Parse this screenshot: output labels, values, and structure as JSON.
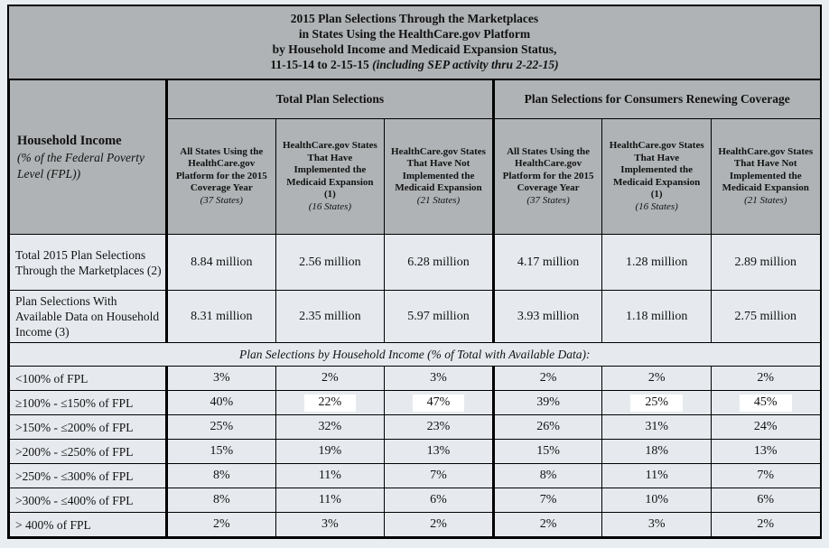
{
  "title": {
    "line1": "2015 Plan Selections Through the Marketplaces",
    "line2": "in States Using the HealthCare.gov Platform",
    "line3": "by Household Income and Medicaid Expansion Status,",
    "line4_dates": "11-15-14 to 2-15-15",
    "line4_note": "(including SEP activity thru 2-22-15)"
  },
  "row_header": {
    "title": "Household Income",
    "subtitle": "(% of the Federal Poverty Level (FPL))"
  },
  "groups": [
    {
      "label": "Total Plan Selections"
    },
    {
      "label": "Plan Selections for Consumers Renewing Coverage"
    }
  ],
  "columns": [
    {
      "text": "All States Using the HealthCare.gov Platform for the 2015 Coverage Year",
      "states": "(37 States)"
    },
    {
      "text": "HealthCare.gov States That Have Implemented the Medicaid Expansion (1)",
      "states": "(16 States)"
    },
    {
      "text": "HealthCare.gov States That Have Not Implemented the Medicaid Expansion",
      "states": "(21 States)"
    },
    {
      "text": "All States Using the HealthCare.gov Platform for the 2015 Coverage Year",
      "states": "(37 States)"
    },
    {
      "text": "HealthCare.gov States That Have Implemented the Medicaid Expansion (1)",
      "states": "(16 States)"
    },
    {
      "text": "HealthCare.gov States That Have Not Implemented the Medicaid Expansion",
      "states": "(21 States)"
    }
  ],
  "summary_rows": [
    {
      "label": "Total 2015 Plan Selections Through the Marketplaces (2)",
      "values": [
        "8.84 million",
        "2.56 million",
        "6.28 million",
        "4.17 million",
        "1.28 million",
        "2.89 million"
      ]
    },
    {
      "label": "Plan Selections With Available Data on Household Income (3)",
      "values": [
        "8.31 million",
        "2.35 million",
        "5.97 million",
        "3.93 million",
        "1.18 million",
        "2.75 million"
      ]
    }
  ],
  "section_note": "Plan Selections by Household Income (% of Total with Available Data):",
  "income_rows": [
    {
      "label": "<100% of FPL",
      "values": [
        "3%",
        "2%",
        "3%",
        "2%",
        "2%",
        "2%"
      ]
    },
    {
      "label": "≥100% - ≤150% of FPL",
      "values": [
        "40%",
        "22%",
        "47%",
        "39%",
        "25%",
        "45%"
      ]
    },
    {
      "label": ">150% - ≤200% of FPL",
      "values": [
        "25%",
        "32%",
        "23%",
        "26%",
        "31%",
        "24%"
      ]
    },
    {
      "label": ">200% - ≤250% of FPL",
      "values": [
        "15%",
        "19%",
        "13%",
        "15%",
        "18%",
        "13%"
      ]
    },
    {
      "label": ">250% - ≤300% of FPL",
      "values": [
        "8%",
        "11%",
        "7%",
        "8%",
        "11%",
        "7%"
      ]
    },
    {
      "label": ">300% - ≤400% of FPL",
      "values": [
        "8%",
        "11%",
        "6%",
        "7%",
        "10%",
        "6%"
      ]
    },
    {
      "label": "> 400% of FPL",
      "values": [
        "2%",
        "3%",
        "2%",
        "2%",
        "3%",
        "2%"
      ]
    }
  ],
  "highlight": {
    "row_label": "≥100% - ≤150% of FPL",
    "value_column_indexes": [
      1,
      2,
      4,
      5
    ],
    "color": "#ffffff"
  },
  "colors": {
    "page_bg": "#e8edf2",
    "header_bg": "#afb3b5",
    "cell_bg": "#e6eaef",
    "border": "#000000",
    "text": "#111111",
    "highlight_bg": "#ffffff"
  }
}
